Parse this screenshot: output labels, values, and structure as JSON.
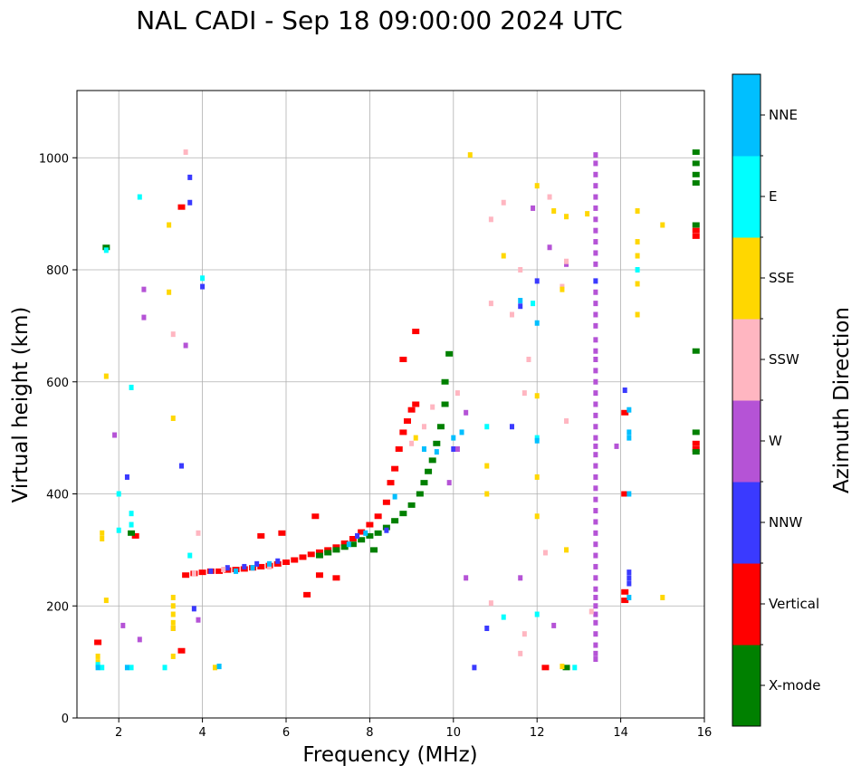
{
  "chart_data": {
    "type": "scatter",
    "title": "NAL CADI - Sep 18 09:00:00 2024 UTC",
    "xlabel": "Frequency (MHz)",
    "ylabel": "Virtual height (km)",
    "xlim": [
      1,
      16
    ],
    "ylim": [
      0,
      1120
    ],
    "xticks": [
      2,
      4,
      6,
      8,
      10,
      12,
      14,
      16
    ],
    "yticks": [
      0,
      200,
      400,
      600,
      800,
      1000
    ],
    "grid": true,
    "colorbar": {
      "label": "Azimuth Direction",
      "categories": [
        "X-mode",
        "Vertical",
        "NNW",
        "W",
        "SSW",
        "SSE",
        "E",
        "NNE"
      ],
      "colors": {
        "X-mode": "#008000",
        "Vertical": "#ff0000",
        "NNW": "#3a3aff",
        "W": "#b553d6",
        "SSW": "#ffb6c1",
        "SSE": "#ffd700",
        "E": "#00ffff",
        "NNE": "#00bfff"
      }
    },
    "series": [
      {
        "name": "Vertical",
        "points": [
          [
            3.6,
            255
          ],
          [
            3.8,
            258
          ],
          [
            4.0,
            260
          ],
          [
            4.2,
            262
          ],
          [
            4.4,
            262
          ],
          [
            4.6,
            264
          ],
          [
            4.8,
            265
          ],
          [
            5.0,
            266
          ],
          [
            5.2,
            268
          ],
          [
            5.4,
            270
          ],
          [
            5.6,
            272
          ],
          [
            5.8,
            275
          ],
          [
            6.0,
            278
          ],
          [
            6.2,
            282
          ],
          [
            6.4,
            287
          ],
          [
            6.6,
            292
          ],
          [
            6.8,
            296
          ],
          [
            7.0,
            300
          ],
          [
            7.2,
            305
          ],
          [
            7.4,
            312
          ],
          [
            7.6,
            320
          ],
          [
            7.8,
            332
          ],
          [
            8.0,
            345
          ],
          [
            8.2,
            360
          ],
          [
            8.4,
            385
          ],
          [
            8.5,
            420
          ],
          [
            8.6,
            445
          ],
          [
            8.7,
            480
          ],
          [
            8.8,
            510
          ],
          [
            8.9,
            530
          ],
          [
            9.0,
            550
          ],
          [
            9.1,
            560
          ],
          [
            6.5,
            220
          ],
          [
            6.8,
            255
          ],
          [
            7.2,
            250
          ],
          [
            5.4,
            325
          ],
          [
            5.9,
            330
          ],
          [
            6.7,
            360
          ],
          [
            8.8,
            640
          ],
          [
            9.1,
            690
          ],
          [
            3.5,
            912
          ],
          [
            12.2,
            90
          ],
          [
            14.1,
            210
          ],
          [
            14.1,
            225
          ],
          [
            14.1,
            400
          ],
          [
            14.1,
            545
          ],
          [
            15.8,
            860
          ],
          [
            15.8,
            870
          ],
          [
            15.8,
            490
          ],
          [
            15.8,
            480
          ],
          [
            1.5,
            135
          ],
          [
            3.5,
            120
          ],
          [
            2.4,
            325
          ]
        ]
      },
      {
        "name": "X-mode",
        "points": [
          [
            6.8,
            290
          ],
          [
            7.0,
            295
          ],
          [
            7.2,
            300
          ],
          [
            7.4,
            305
          ],
          [
            7.6,
            310
          ],
          [
            7.8,
            318
          ],
          [
            8.0,
            325
          ],
          [
            8.2,
            330
          ],
          [
            8.4,
            340
          ],
          [
            8.6,
            352
          ],
          [
            8.8,
            365
          ],
          [
            9.0,
            380
          ],
          [
            9.2,
            400
          ],
          [
            9.3,
            420
          ],
          [
            9.4,
            440
          ],
          [
            9.5,
            460
          ],
          [
            9.6,
            490
          ],
          [
            9.7,
            520
          ],
          [
            9.8,
            560
          ],
          [
            9.8,
            600
          ],
          [
            9.9,
            650
          ],
          [
            8.1,
            300
          ],
          [
            15.8,
            1010
          ],
          [
            15.8,
            990
          ],
          [
            15.8,
            970
          ],
          [
            15.8,
            955
          ],
          [
            15.8,
            880
          ],
          [
            15.8,
            655
          ],
          [
            15.8,
            510
          ],
          [
            15.8,
            475
          ],
          [
            12.7,
            90
          ],
          [
            1.7,
            840
          ],
          [
            2.3,
            330
          ]
        ]
      },
      {
        "name": "NNW",
        "points": [
          [
            4.2,
            262
          ],
          [
            4.6,
            268
          ],
          [
            5.0,
            270
          ],
          [
            5.3,
            275
          ],
          [
            5.8,
            280
          ],
          [
            7.7,
            325
          ],
          [
            8.4,
            335
          ],
          [
            10.0,
            480
          ],
          [
            3.7,
            920
          ],
          [
            3.7,
            965
          ],
          [
            4.0,
            770
          ],
          [
            11.6,
            735
          ],
          [
            12.0,
            780
          ],
          [
            11.4,
            520
          ],
          [
            13.4,
            780
          ],
          [
            14.2,
            240
          ],
          [
            14.2,
            250
          ],
          [
            14.2,
            260
          ],
          [
            14.1,
            585
          ],
          [
            10.8,
            160
          ],
          [
            10.5,
            90
          ],
          [
            2.2,
            430
          ],
          [
            3.5,
            450
          ],
          [
            3.8,
            195
          ]
        ]
      },
      {
        "name": "W",
        "points": [
          [
            13.4,
            1005
          ],
          [
            13.4,
            990
          ],
          [
            13.4,
            970
          ],
          [
            13.4,
            950
          ],
          [
            13.4,
            930
          ],
          [
            13.4,
            910
          ],
          [
            13.4,
            890
          ],
          [
            13.4,
            870
          ],
          [
            13.4,
            850
          ],
          [
            13.4,
            830
          ],
          [
            13.4,
            810
          ],
          [
            13.4,
            760
          ],
          [
            13.4,
            740
          ],
          [
            13.4,
            720
          ],
          [
            13.4,
            700
          ],
          [
            13.4,
            675
          ],
          [
            13.4,
            655
          ],
          [
            13.4,
            640
          ],
          [
            13.4,
            620
          ],
          [
            13.4,
            600
          ],
          [
            13.4,
            580
          ],
          [
            13.4,
            560
          ],
          [
            13.4,
            540
          ],
          [
            13.4,
            520
          ],
          [
            13.4,
            500
          ],
          [
            13.4,
            485
          ],
          [
            13.4,
            470
          ],
          [
            13.4,
            450
          ],
          [
            13.4,
            430
          ],
          [
            13.4,
            410
          ],
          [
            13.4,
            390
          ],
          [
            13.4,
            370
          ],
          [
            13.4,
            350
          ],
          [
            13.4,
            330
          ],
          [
            13.4,
            310
          ],
          [
            13.4,
            290
          ],
          [
            13.4,
            270
          ],
          [
            13.4,
            250
          ],
          [
            13.4,
            230
          ],
          [
            13.4,
            215
          ],
          [
            13.4,
            200
          ],
          [
            13.4,
            185
          ],
          [
            13.4,
            170
          ],
          [
            13.4,
            150
          ],
          [
            13.4,
            130
          ],
          [
            13.4,
            115
          ],
          [
            13.4,
            105
          ],
          [
            10.1,
            480
          ],
          [
            9.9,
            420
          ],
          [
            10.3,
            545
          ],
          [
            10.3,
            250
          ],
          [
            11.6,
            250
          ],
          [
            12.3,
            840
          ],
          [
            12.7,
            810
          ],
          [
            13.9,
            485
          ],
          [
            12.4,
            165
          ],
          [
            11.9,
            910
          ],
          [
            3.6,
            665
          ],
          [
            2.6,
            765
          ],
          [
            2.6,
            715
          ],
          [
            2.1,
            165
          ],
          [
            2.5,
            140
          ],
          [
            3.3,
            160
          ],
          [
            3.9,
            175
          ],
          [
            1.9,
            505
          ]
        ]
      },
      {
        "name": "SSW",
        "points": [
          [
            3.8,
            258
          ],
          [
            4.5,
            265
          ],
          [
            5.6,
            270
          ],
          [
            9.0,
            490
          ],
          [
            9.5,
            555
          ],
          [
            9.3,
            520
          ],
          [
            10.1,
            580
          ],
          [
            10.9,
            740
          ],
          [
            10.9,
            890
          ],
          [
            11.2,
            920
          ],
          [
            11.4,
            720
          ],
          [
            11.6,
            800
          ],
          [
            11.7,
            580
          ],
          [
            11.8,
            640
          ],
          [
            12.2,
            295
          ],
          [
            12.3,
            930
          ],
          [
            12.7,
            815
          ],
          [
            12.6,
            770
          ],
          [
            12.7,
            530
          ],
          [
            13.3,
            190
          ],
          [
            11.6,
            115
          ],
          [
            10.9,
            205
          ],
          [
            11.7,
            150
          ],
          [
            3.3,
            685
          ],
          [
            3.6,
            1010
          ],
          [
            3.9,
            330
          ]
        ]
      },
      {
        "name": "SSE",
        "points": [
          [
            3.3,
            215
          ],
          [
            3.3,
            200
          ],
          [
            3.3,
            185
          ],
          [
            3.3,
            170
          ],
          [
            3.3,
            160
          ],
          [
            3.3,
            110
          ],
          [
            3.3,
            535
          ],
          [
            3.2,
            880
          ],
          [
            3.2,
            760
          ],
          [
            1.5,
            110
          ],
          [
            1.5,
            100
          ],
          [
            1.6,
            330
          ],
          [
            1.6,
            320
          ],
          [
            1.7,
            210
          ],
          [
            1.7,
            610
          ],
          [
            4.3,
            90
          ],
          [
            12.0,
            950
          ],
          [
            12.4,
            905
          ],
          [
            12.7,
            895
          ],
          [
            12.6,
            765
          ],
          [
            12.7,
            300
          ],
          [
            12.0,
            360
          ],
          [
            12.0,
            430
          ],
          [
            12.0,
            575
          ],
          [
            12.6,
            92
          ],
          [
            14.4,
            905
          ],
          [
            14.4,
            850
          ],
          [
            14.4,
            825
          ],
          [
            14.4,
            775
          ],
          [
            14.4,
            720
          ],
          [
            15.0,
            880
          ],
          [
            15.0,
            215
          ],
          [
            13.2,
            900
          ],
          [
            11.2,
            825
          ],
          [
            10.4,
            1005
          ],
          [
            10.8,
            450
          ],
          [
            10.8,
            400
          ],
          [
            9.1,
            500
          ]
        ]
      },
      {
        "name": "E",
        "points": [
          [
            1.5,
            95
          ],
          [
            1.6,
            90
          ],
          [
            1.7,
            835
          ],
          [
            2.0,
            400
          ],
          [
            2.0,
            335
          ],
          [
            2.3,
            365
          ],
          [
            2.3,
            345
          ],
          [
            2.3,
            590
          ],
          [
            2.5,
            930
          ],
          [
            3.7,
            290
          ],
          [
            4.0,
            785
          ],
          [
            4.4,
            92
          ],
          [
            10.8,
            520
          ],
          [
            11.2,
            180
          ],
          [
            11.9,
            740
          ],
          [
            12.0,
            185
          ],
          [
            12.0,
            500
          ],
          [
            12.9,
            90
          ],
          [
            14.4,
            800
          ],
          [
            2.3,
            90
          ],
          [
            3.1,
            90
          ]
        ]
      },
      {
        "name": "NNE",
        "points": [
          [
            4.8,
            262
          ],
          [
            5.2,
            268
          ],
          [
            5.6,
            275
          ],
          [
            7.5,
            310
          ],
          [
            7.9,
            330
          ],
          [
            8.6,
            395
          ],
          [
            9.3,
            480
          ],
          [
            9.6,
            475
          ],
          [
            10.0,
            500
          ],
          [
            10.2,
            510
          ],
          [
            14.2,
            550
          ],
          [
            14.2,
            510
          ],
          [
            14.2,
            500
          ],
          [
            14.2,
            400
          ],
          [
            14.2,
            215
          ],
          [
            11.6,
            745
          ],
          [
            12.0,
            705
          ],
          [
            12.0,
            495
          ],
          [
            1.5,
            90
          ],
          [
            2.2,
            90
          ],
          [
            4.4,
            92
          ]
        ]
      }
    ]
  }
}
